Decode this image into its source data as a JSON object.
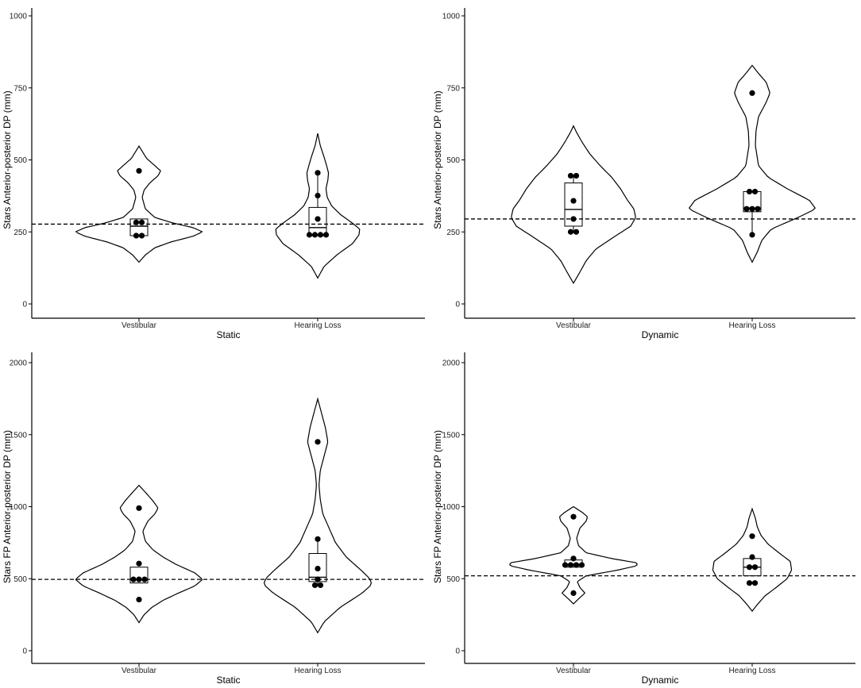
{
  "chart_data": [
    {
      "type": "violin",
      "panel": "top-left",
      "xlabel": "Static",
      "ylabel": "Stars Anterior-posterior DP (mm)",
      "ylim": [
        0,
        1000
      ],
      "yticks": [
        0,
        250,
        500,
        750,
        1000
      ],
      "categories": [
        "Vestibular",
        "Hearing Loss"
      ],
      "reference_line": 277,
      "groups": [
        {
          "category": "Vestibular",
          "points": [
            462,
            283,
            283,
            237,
            237
          ],
          "box": {
            "min": 237,
            "q1": 237,
            "median": 270,
            "q3": 295,
            "max": 295
          },
          "violin_range": [
            145,
            548
          ],
          "density": [
            [
              145,
              0.0
            ],
            [
              170,
              0.1
            ],
            [
              195,
              0.25
            ],
            [
              215,
              0.5
            ],
            [
              235,
              0.85
            ],
            [
              250,
              1.0
            ],
            [
              265,
              0.85
            ],
            [
              280,
              0.55
            ],
            [
              300,
              0.25
            ],
            [
              330,
              0.1
            ],
            [
              370,
              0.05
            ],
            [
              395,
              0.08
            ],
            [
              420,
              0.17
            ],
            [
              445,
              0.3
            ],
            [
              462,
              0.34
            ],
            [
              480,
              0.25
            ],
            [
              505,
              0.12
            ],
            [
              530,
              0.05
            ],
            [
              548,
              0.0
            ]
          ]
        },
        {
          "category": "Hearing Loss",
          "points": [
            455,
            376,
            295,
            240,
            240,
            240,
            240
          ],
          "box": {
            "min": 240,
            "q1": 240,
            "median": 265,
            "q3": 335,
            "max": 455
          },
          "violin_range": [
            90,
            592
          ],
          "density": [
            [
              90,
              0.0
            ],
            [
              130,
              0.1
            ],
            [
              170,
              0.3
            ],
            [
              210,
              0.55
            ],
            [
              240,
              0.65
            ],
            [
              260,
              0.66
            ],
            [
              280,
              0.55
            ],
            [
              310,
              0.36
            ],
            [
              340,
              0.22
            ],
            [
              370,
              0.15
            ],
            [
              400,
              0.13
            ],
            [
              430,
              0.16
            ],
            [
              455,
              0.17
            ],
            [
              480,
              0.14
            ],
            [
              510,
              0.1
            ],
            [
              550,
              0.04
            ],
            [
              592,
              0.0
            ]
          ]
        }
      ]
    },
    {
      "type": "violin",
      "panel": "top-right",
      "xlabel": "Dynamic",
      "ylabel": "Stars Anterior-posterior DP (mm)",
      "ylim": [
        0,
        1000
      ],
      "yticks": [
        0,
        250,
        500,
        750,
        1000
      ],
      "categories": [
        "Vestibular",
        "Hearing Loss"
      ],
      "reference_line": 295,
      "groups": [
        {
          "category": "Vestibular",
          "points": [
            445,
            445,
            358,
            295,
            250,
            250
          ],
          "box": {
            "min": 250,
            "q1": 270,
            "median": 328,
            "q3": 420,
            "max": 445
          },
          "violin_range": [
            72,
            618
          ],
          "density": [
            [
              72,
              0.0
            ],
            [
              110,
              0.1
            ],
            [
              150,
              0.2
            ],
            [
              190,
              0.35
            ],
            [
              230,
              0.62
            ],
            [
              270,
              0.9
            ],
            [
              300,
              0.98
            ],
            [
              330,
              0.95
            ],
            [
              360,
              0.85
            ],
            [
              400,
              0.74
            ],
            [
              440,
              0.6
            ],
            [
              480,
              0.42
            ],
            [
              520,
              0.26
            ],
            [
              560,
              0.14
            ],
            [
              595,
              0.05
            ],
            [
              618,
              0.0
            ]
          ]
        },
        {
          "category": "Hearing Loss",
          "points": [
            732,
            390,
            390,
            330,
            330,
            330,
            240
          ],
          "box": {
            "min": 240,
            "q1": 320,
            "median": 333,
            "q3": 390,
            "max": 390
          },
          "violin_range": [
            145,
            828
          ],
          "density": [
            [
              145,
              0.0
            ],
            [
              180,
              0.08
            ],
            [
              220,
              0.15
            ],
            [
              260,
              0.3
            ],
            [
              300,
              0.72
            ],
            [
              330,
              1.0
            ],
            [
              360,
              0.9
            ],
            [
              400,
              0.55
            ],
            [
              440,
              0.25
            ],
            [
              480,
              0.1
            ],
            [
              550,
              0.05
            ],
            [
              600,
              0.06
            ],
            [
              650,
              0.1
            ],
            [
              700,
              0.22
            ],
            [
              732,
              0.28
            ],
            [
              770,
              0.22
            ],
            [
              800,
              0.1
            ],
            [
              828,
              0.0
            ]
          ]
        }
      ]
    },
    {
      "type": "violin",
      "panel": "bottom-left",
      "xlabel": "Static",
      "ylabel": "Stars FP Anterior-posterior DP (mm)",
      "ylim": [
        0,
        2000
      ],
      "yticks": [
        0,
        500,
        1000,
        1500,
        2000
      ],
      "categories": [
        "Vestibular",
        "Hearing Loss"
      ],
      "reference_line": 495,
      "groups": [
        {
          "category": "Vestibular",
          "points": [
            990,
            605,
            495,
            495,
            495,
            355
          ],
          "box": {
            "min": 470,
            "q1": 470,
            "median": 495,
            "q3": 580,
            "max": 580
          },
          "violin_range": [
            195,
            1148
          ],
          "density": [
            [
              195,
              0.0
            ],
            [
              250,
              0.08
            ],
            [
              300,
              0.2
            ],
            [
              350,
              0.38
            ],
            [
              400,
              0.62
            ],
            [
              450,
              0.88
            ],
            [
              495,
              1.0
            ],
            [
              540,
              0.88
            ],
            [
              600,
              0.58
            ],
            [
              650,
              0.38
            ],
            [
              700,
              0.22
            ],
            [
              760,
              0.1
            ],
            [
              830,
              0.06
            ],
            [
              900,
              0.14
            ],
            [
              950,
              0.25
            ],
            [
              990,
              0.3
            ],
            [
              1040,
              0.22
            ],
            [
              1100,
              0.1
            ],
            [
              1148,
              0.0
            ]
          ]
        },
        {
          "category": "Hearing Loss",
          "points": [
            1450,
            775,
            570,
            495,
            455,
            455
          ],
          "box": {
            "min": 455,
            "q1": 480,
            "median": 510,
            "q3": 675,
            "max": 775
          },
          "violin_range": [
            125,
            1748
          ],
          "density": [
            [
              125,
              0.0
            ],
            [
              200,
              0.1
            ],
            [
              300,
              0.35
            ],
            [
              400,
              0.7
            ],
            [
              460,
              0.85
            ],
            [
              500,
              0.82
            ],
            [
              560,
              0.68
            ],
            [
              650,
              0.45
            ],
            [
              750,
              0.28
            ],
            [
              850,
              0.18
            ],
            [
              950,
              0.08
            ],
            [
              1050,
              0.04
            ],
            [
              1150,
              0.02
            ],
            [
              1250,
              0.04
            ],
            [
              1350,
              0.1
            ],
            [
              1450,
              0.16
            ],
            [
              1550,
              0.12
            ],
            [
              1650,
              0.06
            ],
            [
              1748,
              0.0
            ]
          ]
        }
      ]
    },
    {
      "type": "violin",
      "panel": "bottom-right",
      "xlabel": "Dynamic",
      "ylabel": "Stars FP Anterior-posterior DP (mm)",
      "ylim": [
        0,
        2000
      ],
      "yticks": [
        0,
        500,
        1000,
        1500,
        2000
      ],
      "categories": [
        "Vestibular",
        "Hearing Loss"
      ],
      "reference_line": 520,
      "groups": [
        {
          "category": "Vestibular",
          "points": [
            930,
            640,
            595,
            595,
            595,
            595,
            400
          ],
          "box": {
            "min": 580,
            "q1": 580,
            "median": 600,
            "q3": 630,
            "max": 640
          },
          "violin_range": [
            325,
            1000
          ],
          "density": [
            [
              325,
              0.0
            ],
            [
              360,
              0.08
            ],
            [
              400,
              0.18
            ],
            [
              440,
              0.1
            ],
            [
              480,
              0.06
            ],
            [
              520,
              0.2
            ],
            [
              560,
              0.7
            ],
            [
              590,
              1.0
            ],
            [
              610,
              1.0
            ],
            [
              640,
              0.6
            ],
            [
              680,
              0.2
            ],
            [
              730,
              0.08
            ],
            [
              780,
              0.05
            ],
            [
              850,
              0.1
            ],
            [
              900,
              0.2
            ],
            [
              930,
              0.22
            ],
            [
              960,
              0.14
            ],
            [
              1000,
              0.0
            ]
          ]
        },
        {
          "category": "Hearing Loss",
          "points": [
            795,
            650,
            580,
            580,
            470,
            470
          ],
          "box": {
            "min": 520,
            "q1": 520,
            "median": 580,
            "q3": 640,
            "max": 640
          },
          "violin_range": [
            275,
            985
          ],
          "density": [
            [
              275,
              0.0
            ],
            [
              320,
              0.08
            ],
            [
              380,
              0.2
            ],
            [
              440,
              0.38
            ],
            [
              500,
              0.55
            ],
            [
              560,
              0.62
            ],
            [
              620,
              0.6
            ],
            [
              680,
              0.42
            ],
            [
              740,
              0.25
            ],
            [
              800,
              0.14
            ],
            [
              860,
              0.08
            ],
            [
              920,
              0.05
            ],
            [
              985,
              0.0
            ]
          ]
        }
      ]
    }
  ]
}
